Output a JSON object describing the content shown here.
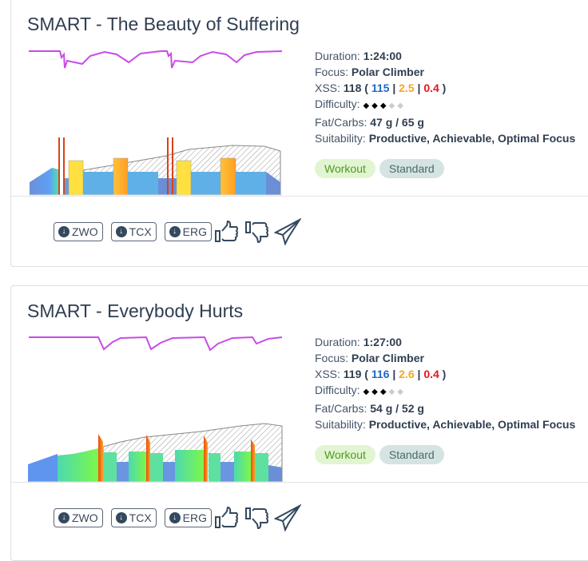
{
  "workouts": [
    {
      "title": "SMART - The Beauty of Suffering",
      "duration_label": "Duration:",
      "duration": "1:24:00",
      "focus_label": "Focus:",
      "focus": "Polar Climber",
      "xss_label": "XSS:",
      "xss": "118",
      "xss_open": "(",
      "xss_blue": "115",
      "xss_orange": "2.5",
      "xss_red": "0.4",
      "xss_sep": "|",
      "xss_close": ")",
      "difficulty_label": "Difficulty:",
      "difficulty": 3,
      "difficulty_max": 5,
      "fat_carbs_label": "Fat/Carbs:",
      "fat_carbs": "47 g / 65 g",
      "suitability_label": "Suitability:",
      "suitability": "Productive, Achievable, Optimal Focus",
      "tags": [
        "Workout",
        "Standard"
      ],
      "downloads": [
        "ZWO",
        "TCX",
        "ERG"
      ]
    },
    {
      "title": "SMART - Everybody Hurts",
      "duration_label": "Duration:",
      "duration": "1:27:00",
      "focus_label": "Focus:",
      "focus": "Polar Climber",
      "xss_label": "XSS:",
      "xss": "119",
      "xss_open": "(",
      "xss_blue": "116",
      "xss_orange": "2.6",
      "xss_red": "0.4",
      "xss_sep": "|",
      "xss_close": ")",
      "difficulty_label": "Difficulty:",
      "difficulty": 3,
      "difficulty_max": 5,
      "fat_carbs_label": "Fat/Carbs:",
      "fat_carbs": "54 g / 52 g",
      "suitability_label": "Suitability:",
      "suitability": "Productive, Achievable, Optimal Focus",
      "tags": [
        "Workout",
        "Standard"
      ],
      "downloads": [
        "ZWO",
        "TCX",
        "ERG"
      ]
    }
  ],
  "icons": {
    "download": "download-circle-icon",
    "like": "thumbs-up-icon",
    "dislike": "thumbs-down-icon",
    "send": "paper-plane-icon"
  },
  "colors": {
    "xss_blue": "#1d67c9",
    "xss_orange": "#f5a623",
    "xss_red": "#e8141e",
    "tag_workout_bg": "#e2f5d2",
    "tag_standard_bg": "#d5e3e3",
    "line": "#c94be8"
  }
}
